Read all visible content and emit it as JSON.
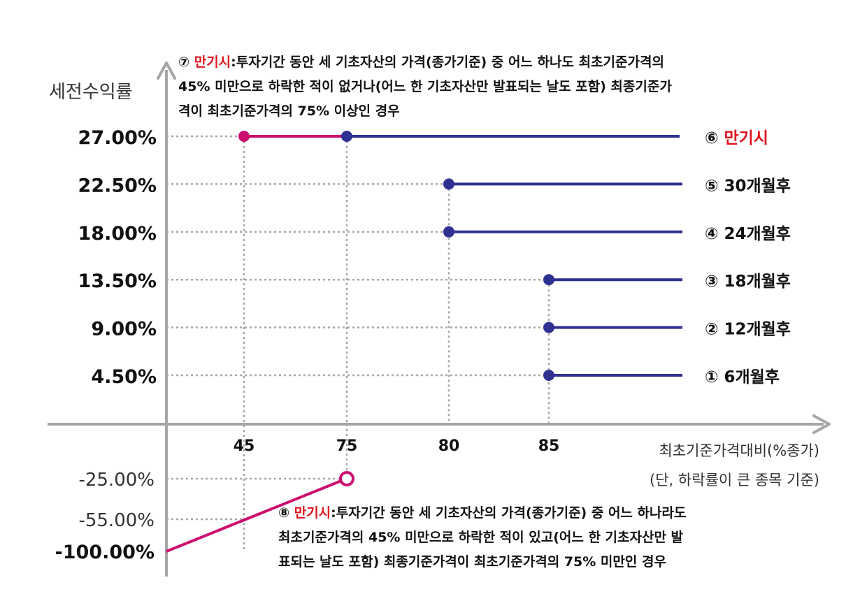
{
  "chart_data": {
    "type": "line",
    "ylabel": "세전수익률",
    "xlabel": "최초기준가격대비(%종가)",
    "xlabel_note": "(단, 하락률이 큰 종목 기준)",
    "x_ticks": [
      "45",
      "75",
      "80",
      "85"
    ],
    "y_ticks_positive": [
      "27.00%",
      "22.50%",
      "18.00%",
      "13.50%",
      "9.00%",
      "4.50%"
    ],
    "y_ticks_negative": [
      "-25.00%",
      "-55.00%",
      "-100.00%"
    ],
    "series": [
      {
        "marker": "⑥",
        "name": "만기시",
        "start_x": 75,
        "y": 27.0,
        "color": "#2e3192"
      },
      {
        "marker": "⑤",
        "name": "30개월후",
        "start_x": 80,
        "y": 22.5,
        "color": "#2e3192"
      },
      {
        "marker": "④",
        "name": "24개월후",
        "start_x": 80,
        "y": 18.0,
        "color": "#2e3192"
      },
      {
        "marker": "③",
        "name": "18개월후",
        "start_x": 85,
        "y": 13.5,
        "color": "#2e3192"
      },
      {
        "marker": "②",
        "name": "12개월후",
        "start_x": 85,
        "y": 9.0,
        "color": "#2e3192"
      },
      {
        "marker": "①",
        "name": "6개월후",
        "start_x": 85,
        "y": 4.5,
        "color": "#2e3192"
      }
    ],
    "magenta_segment": {
      "x": [
        45,
        75
      ],
      "y": 27.0,
      "color": "#cc0e6f"
    },
    "loss_line": {
      "from_y": -100.0,
      "to_x": 75,
      "to_y": -25.0,
      "endpoint": "open",
      "color": "#cc0e6f"
    }
  },
  "annotations": {
    "note7": {
      "marker": "⑦",
      "highlight": "만기시",
      "line1": ":투자기간 동안 세 기초자산의 가격(종가기준) 중 어느 하나도 최초기준가격의",
      "line2": "45% 미만으로 하락한 적이 없거나(어느 한 기초자산만 발표되는 날도 포함) 최종기준가",
      "line3": "격이 최초기준가격의 75% 이상인 경우"
    },
    "note8": {
      "marker": "⑧",
      "highlight": "만기시",
      "line1": ":투자기간 동안 세 기초자산의 가격(종가기준) 중 어느 하나라도",
      "line2": "최초기준가격의 45% 미만으로 하락한 적이 있고(어느 한 기초자산만 발",
      "line3": "표되는 날도 포함) 최종기준가격이 최초기준가격의 75% 미만인 경우"
    }
  },
  "colors": {
    "axis": "#a6a6a6",
    "grid": "#a6a6a6",
    "blue": "#2e3192",
    "magenta": "#cc0e6f",
    "red": "#e0121b"
  }
}
